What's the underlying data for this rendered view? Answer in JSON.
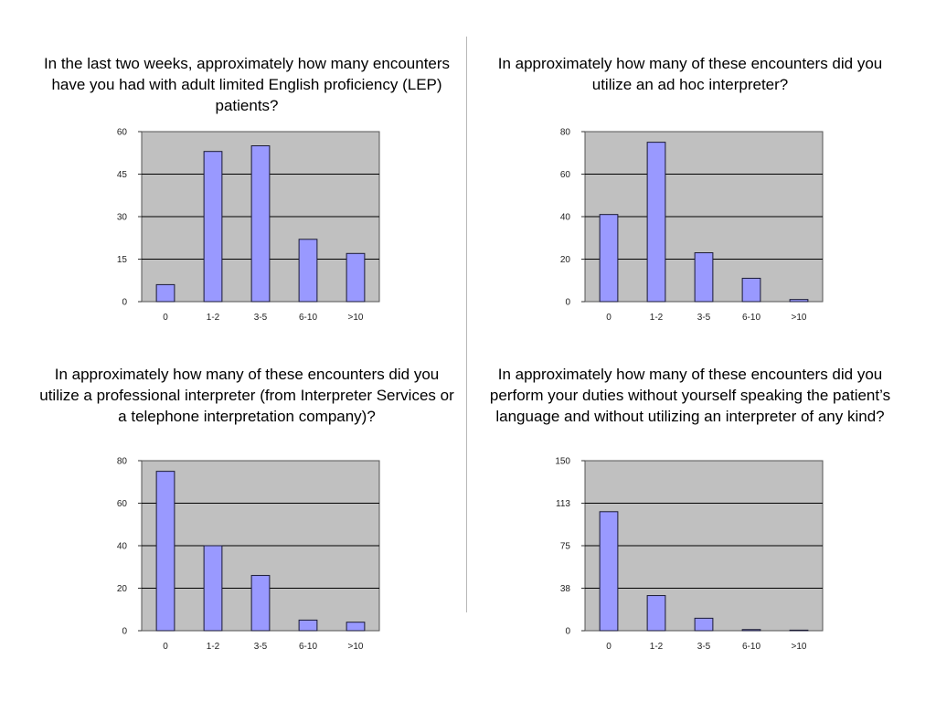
{
  "colors": {
    "plot_bg": "#c0c0c0",
    "bar": "#9999ff",
    "bar_stroke": "#1a1a33",
    "grid": "#000000"
  },
  "chart_data": [
    {
      "type": "bar",
      "title": "In the last two weeks, approximately how many encounters have you had with adult limited English proficiency (LEP) patients?",
      "categories": [
        "0",
        "1-2",
        "3-5",
        "6-10",
        ">10"
      ],
      "values": [
        6,
        53,
        55,
        22,
        17
      ],
      "yticks": [
        "0",
        "15",
        "30",
        "45",
        "60"
      ],
      "ylim": [
        0,
        60
      ],
      "grid": true
    },
    {
      "type": "bar",
      "title": "In approximately how many of these encounters did you utilize an ad hoc interpreter?",
      "categories": [
        "0",
        "1-2",
        "3-5",
        "6-10",
        ">10"
      ],
      "values": [
        41,
        75,
        23,
        11,
        1
      ],
      "yticks": [
        "0",
        "20",
        "40",
        "60",
        "80"
      ],
      "ylim": [
        0,
        80
      ],
      "grid": true
    },
    {
      "type": "bar",
      "title": "In approximately how many of these encounters did you utilize a professional interpreter (from Interpreter Services or a telephone interpretation company)?",
      "categories": [
        "0",
        "1-2",
        "3-5",
        "6-10",
        ">10"
      ],
      "values": [
        75,
        40,
        26,
        5,
        4
      ],
      "yticks": [
        "0",
        "20",
        "40",
        "60",
        "80"
      ],
      "ylim": [
        0,
        80
      ],
      "grid": true
    },
    {
      "type": "bar",
      "title": "In approximately how many of these encounters did you perform your duties without yourself speaking the patient’s language and without utilizing an interpreter of any kind?",
      "categories": [
        "0",
        "1-2",
        "3-5",
        "6-10",
        ">10"
      ],
      "values": [
        105,
        31,
        11,
        1,
        0.5
      ],
      "yticks": [
        "0",
        "38",
        "75",
        "113",
        "150"
      ],
      "ylim": [
        0,
        150
      ],
      "grid": true
    }
  ]
}
